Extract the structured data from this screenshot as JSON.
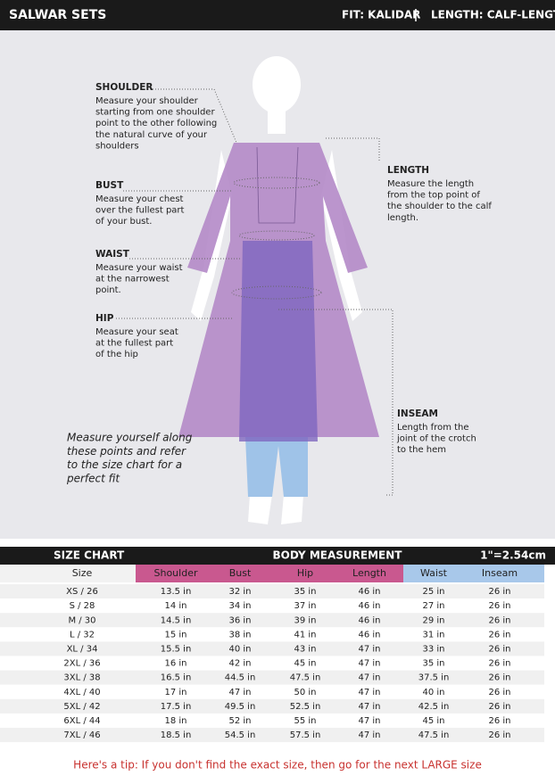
{
  "header": {
    "title": "SALWAR SETS",
    "fit": "FIT: KALIDAR",
    "length": "LENGTH: CALF-LENGTH"
  },
  "annotations": [
    {
      "title": "SHOULDER",
      "lines": [
        "Measure your shoulder",
        "starting from one shoulder",
        "point to the other following",
        "the natural curve of your",
        "shoulders"
      ]
    },
    {
      "title": "BUST",
      "lines": [
        "Measure your chest",
        "over the fullest part",
        "of your bust."
      ]
    },
    {
      "title": "WAIST",
      "lines": [
        "Measure your waist",
        "at the narrowest",
        "point."
      ]
    },
    {
      "title": "HIP",
      "lines": [
        "Measure your seat",
        "at the fullest part",
        "of the hip"
      ]
    },
    {
      "title": "LENGTH",
      "lines": [
        "Measure the length",
        "from the top point of",
        "the shoulder to the calf",
        "length."
      ]
    },
    {
      "title": "INSEAM",
      "lines": [
        "Length from the",
        "joint of the crotch",
        "to the hem"
      ]
    }
  ],
  "note": [
    "Measure yourself along",
    "these points and refer",
    "to the size chart for a",
    "perfect fit"
  ],
  "table": {
    "title": "SIZE CHART",
    "group": "BODY MEASUREMENT",
    "unit": "1\"=2.54cm",
    "columns": [
      "Size",
      "Shoulder",
      "Bust",
      "Hip",
      "Length",
      "Waist",
      "Inseam"
    ],
    "rows": [
      [
        "XS / 26",
        "13.5 in",
        "32 in",
        "35 in",
        "46 in",
        "25 in",
        "26 in"
      ],
      [
        "S / 28",
        "14 in",
        "34 in",
        "37 in",
        "46 in",
        "27 in",
        "26 in"
      ],
      [
        "M / 30",
        "14.5 in",
        "36 in",
        "39 in",
        "46 in",
        "29 in",
        "26 in"
      ],
      [
        "L / 32",
        "15 in",
        "38 in",
        "41 in",
        "46 in",
        "31 in",
        "26 in"
      ],
      [
        "XL / 34",
        "15.5 in",
        "40 in",
        "43 in",
        "47 in",
        "33 in",
        "26 in"
      ],
      [
        "2XL / 36",
        "16 in",
        "42 in",
        "45 in",
        "47 in",
        "35 in",
        "26 in"
      ],
      [
        "3XL / 38",
        "16.5 in",
        "44.5 in",
        "47.5 in",
        "47 in",
        "37.5 in",
        "26 in"
      ],
      [
        "4XL / 40",
        "17 in",
        "47 in",
        "50 in",
        "47 in",
        "40 in",
        "26 in"
      ],
      [
        "5XL / 42",
        "17.5 in",
        "49.5 in",
        "52.5 in",
        "47 in",
        "42.5 in",
        "26 in"
      ],
      [
        "6XL / 44",
        "18 in",
        "52 in",
        "55 in",
        "47 in",
        "45 in",
        "26 in"
      ],
      [
        "7XL / 46",
        "18.5 in",
        "54.5 in",
        "57.5 in",
        "47 in",
        "47.5 in",
        "26 in"
      ]
    ]
  },
  "tip": "Here's a tip: If you don't find the exact size, then go for the next LARGE size"
}
